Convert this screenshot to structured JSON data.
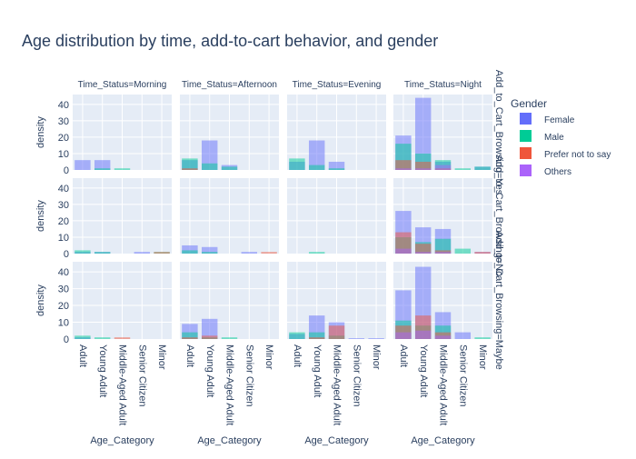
{
  "chart_data": {
    "type": "bar",
    "title": "Age distribution by time, add-to-cart behavior, and gender",
    "barmode": "overlay",
    "facet_col_prefix": "Time_Status=",
    "facet_row_prefix": "Add_to_Cart_Browsing=",
    "columns": [
      "Morning",
      "Afternoon",
      "Evening",
      "Night"
    ],
    "rows": [
      "Yes",
      "No",
      "Maybe"
    ],
    "categories": [
      "Adult",
      "Young Adult",
      "Middle-Aged Adult",
      "Senior Citizen",
      "Minor"
    ],
    "xlabel": "Age_Category",
    "ylabel": "density",
    "ylim": [
      0,
      46
    ],
    "yticks": [
      0,
      10,
      20,
      30,
      40
    ],
    "legend": {
      "title": "Gender",
      "position": "top-right"
    },
    "series": [
      {
        "name": "Female",
        "color": "#636efa",
        "values": [
          [
            [
              6,
              6,
              0,
              0,
              0
            ],
            [
              6,
              18,
              3,
              0,
              0
            ],
            [
              5,
              18,
              5,
              0,
              0
            ],
            [
              21,
              44,
              5,
              0,
              2
            ]
          ],
          [
            [
              1,
              1,
              0,
              1,
              0
            ],
            [
              5,
              4,
              0,
              1,
              0
            ],
            [
              0,
              0,
              0,
              0,
              0
            ],
            [
              26,
              16,
              15,
              0,
              1
            ]
          ],
          [
            [
              1,
              0,
              0,
              0,
              0
            ],
            [
              9,
              12,
              0,
              0,
              0
            ],
            [
              3,
              14,
              10,
              0.5,
              0.5
            ],
            [
              29,
              43,
              16,
              4,
              0
            ]
          ]
        ]
      },
      {
        "name": "Male",
        "color": "#00cc96",
        "values": [
          [
            [
              0,
              1,
              1,
              0,
              0
            ],
            [
              7,
              4,
              2,
              0,
              0
            ],
            [
              7,
              3,
              1,
              0,
              0
            ],
            [
              16,
              10,
              6,
              1,
              2
            ]
          ],
          [
            [
              2,
              1,
              0,
              0,
              1
            ],
            [
              2,
              1,
              0,
              0,
              0
            ],
            [
              0,
              1,
              0,
              0,
              0
            ],
            [
              10,
              7,
              9,
              3,
              0
            ]
          ],
          [
            [
              2,
              1,
              0,
              0,
              0
            ],
            [
              4,
              1,
              1,
              0,
              0
            ],
            [
              4,
              4,
              2,
              0,
              0
            ],
            [
              11,
              8,
              8,
              0,
              1
            ]
          ]
        ]
      },
      {
        "name": "Prefer not to say",
        "color": "#ef553b",
        "values": [
          [
            [
              0,
              0,
              0,
              0,
              0
            ],
            [
              1,
              0,
              0,
              0,
              0
            ],
            [
              0,
              0,
              0,
              0,
              0
            ],
            [
              6,
              5,
              1,
              0,
              0
            ]
          ],
          [
            [
              0,
              0,
              0,
              0,
              1
            ],
            [
              0,
              0,
              0,
              0,
              1
            ],
            [
              0,
              0,
              0,
              0,
              0
            ],
            [
              13,
              6,
              2,
              0,
              1
            ]
          ],
          [
            [
              0,
              0,
              1,
              0,
              0
            ],
            [
              1,
              2,
              0,
              0,
              0
            ],
            [
              0,
              1,
              8,
              0,
              0
            ],
            [
              8,
              14,
              4,
              0,
              0
            ]
          ]
        ]
      },
      {
        "name": "Others",
        "color": "#ab63fa",
        "values": [
          [
            [
              0,
              0,
              0,
              0,
              0
            ],
            [
              0,
              0,
              0,
              0,
              0
            ],
            [
              0,
              0,
              0,
              0,
              0
            ],
            [
              1,
              1,
              3,
              0,
              0
            ]
          ],
          [
            [
              0,
              0,
              0,
              0,
              0
            ],
            [
              0,
              0,
              0,
              0,
              0
            ],
            [
              0,
              0,
              0,
              0,
              0
            ],
            [
              3,
              1,
              1,
              0,
              0
            ]
          ],
          [
            [
              0,
              0,
              0,
              0,
              0
            ],
            [
              0,
              0,
              0,
              0,
              0
            ],
            [
              0,
              0,
              0,
              0,
              0
            ],
            [
              4,
              5,
              2,
              0,
              0
            ]
          ]
        ]
      }
    ]
  }
}
